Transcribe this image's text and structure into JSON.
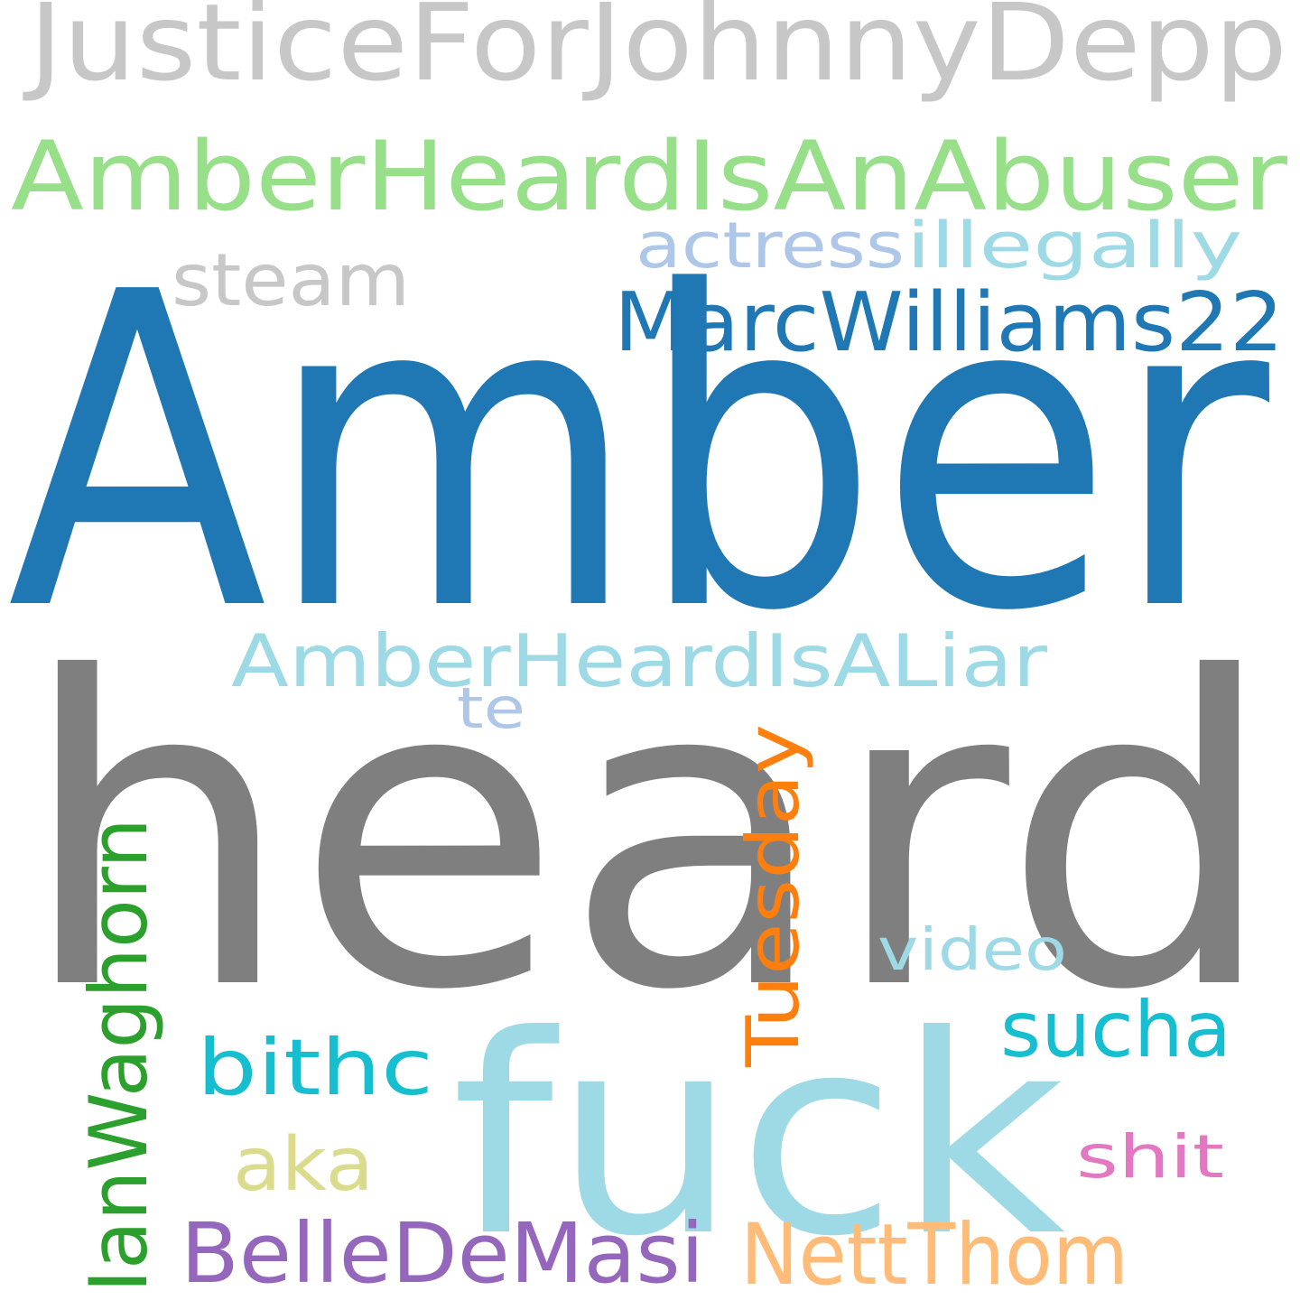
{
  "words": [
    {
      "text": "JusticeForJohnnyDepp",
      "color": "#c7c7c7"
    },
    {
      "text": "AmberHeardIsAnAbuser",
      "color": "#98df8a"
    },
    {
      "text": "actress",
      "color": "#aec7e8"
    },
    {
      "text": "illegally",
      "color": "#9edae5"
    },
    {
      "text": "steam",
      "color": "#c7c7c7"
    },
    {
      "text": "MarcWilliams22",
      "color": "#1f77b4"
    },
    {
      "text": "Amber",
      "color": "#1f77b4"
    },
    {
      "text": "AmberHeardIsALiar",
      "color": "#9edae5"
    },
    {
      "text": "te",
      "color": "#aec7e8"
    },
    {
      "text": "heard",
      "color": "#7f7f7f"
    },
    {
      "text": "Tuesday",
      "color": "#ff7f0e"
    },
    {
      "text": "IanWaghorn",
      "color": "#2ca02c"
    },
    {
      "text": "video",
      "color": "#9edae5"
    },
    {
      "text": "sucha",
      "color": "#17becf"
    },
    {
      "text": "bithc",
      "color": "#17becf"
    },
    {
      "text": "fuck",
      "color": "#9edae5"
    },
    {
      "text": "aka",
      "color": "#dbdb8d"
    },
    {
      "text": "shit",
      "color": "#e377c2"
    },
    {
      "text": "BelleDeMasi",
      "color": "#9467bd"
    },
    {
      "text": "NettThom",
      "color": "#ffbb78"
    }
  ]
}
